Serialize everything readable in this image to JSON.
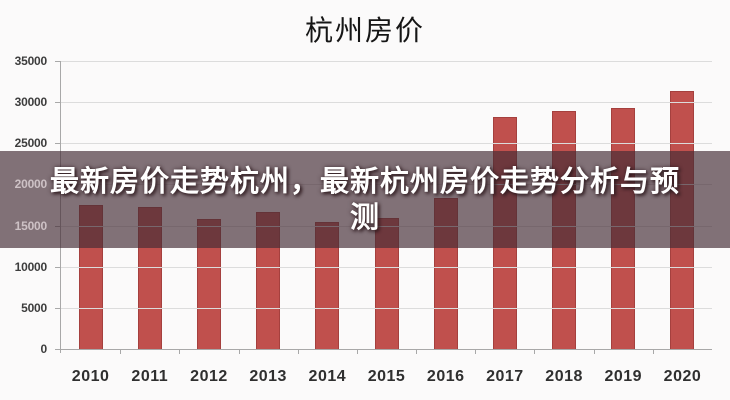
{
  "page": {
    "background": "#fbfafa"
  },
  "chart_data": {
    "type": "bar",
    "title": "杭州房价",
    "categories": [
      "2010",
      "2011",
      "2012",
      "2013",
      "2014",
      "2015",
      "2016",
      "2017",
      "2018",
      "2019",
      "2020"
    ],
    "values": [
      17500,
      17200,
      15800,
      16700,
      15400,
      15900,
      18300,
      28200,
      28900,
      29300,
      31300
    ],
    "xlabel": "",
    "ylabel": "",
    "ylim": [
      0,
      35000
    ],
    "ytick_step": 5000,
    "yticks": [
      "0",
      "5000",
      "10000",
      "15000",
      "20000",
      "25000",
      "30000",
      "35000"
    ],
    "grid": true,
    "legend": false,
    "bar_color": "#c0504d",
    "bar_border_color": "#a5403e",
    "axis_color": "#a8a8a8",
    "gridline_color": "#dcdcdc"
  },
  "overlay": {
    "text": "最新房价走势杭州，最新杭州房价走势分析与预测",
    "lines": [
      "最新房价走势杭州，最新杭州房价走势分析与预",
      "测"
    ],
    "background_rgba": "rgba(69,45,54,0.67)",
    "text_color": "#ffffff"
  }
}
